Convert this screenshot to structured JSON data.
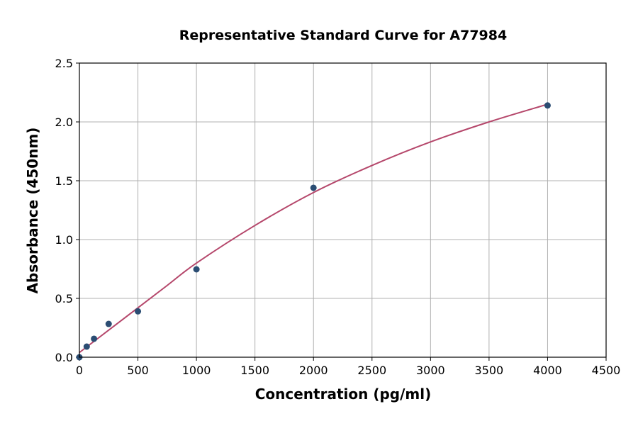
{
  "chart_data": {
    "type": "scatter",
    "title": "Representative Standard Curve for A77984",
    "xlabel": "Concentration (pg/ml)",
    "ylabel": "Absorbance (450nm)",
    "xlim": [
      0,
      4500
    ],
    "ylim": [
      0,
      2.5
    ],
    "xticks": [
      "0",
      "500",
      "1000",
      "1500",
      "2000",
      "2500",
      "3000",
      "3500",
      "4000",
      "4500"
    ],
    "yticks": [
      "0.0",
      "0.5",
      "1.0",
      "1.5",
      "2.0",
      "2.5"
    ],
    "grid": true,
    "points": {
      "x": [
        0,
        62.5,
        125,
        250,
        500,
        1000,
        2000,
        4000
      ],
      "y": [
        0.0,
        0.09,
        0.157,
        0.283,
        0.39,
        0.747,
        1.44,
        2.14
      ],
      "color": "#2b4d73"
    },
    "fit_curve": {
      "x": [
        0,
        250,
        500,
        750,
        1000,
        1500,
        2000,
        2500,
        3000,
        3500,
        4000
      ],
      "y": [
        0.04,
        0.23,
        0.42,
        0.61,
        0.8,
        1.12,
        1.4,
        1.63,
        1.83,
        2.0,
        2.15
      ],
      "color": "#b5476b"
    }
  }
}
